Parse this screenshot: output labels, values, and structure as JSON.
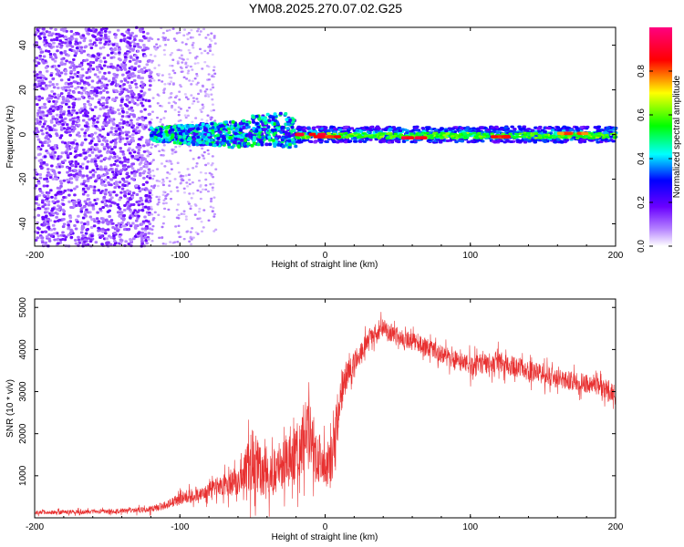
{
  "title": "YM08.2025.270.07.02.G25",
  "chart_data": [
    {
      "type": "heatmap",
      "xlabel": "Height of straight line (km)",
      "ylabel": "Frequency (Hz)",
      "xlim": [
        -200,
        200
      ],
      "ylim": [
        -50,
        48
      ],
      "xticks": [
        -200,
        -100,
        0,
        100,
        200
      ],
      "yticks": [
        -40,
        -20,
        0,
        20,
        40
      ],
      "colorbar": {
        "label": "Normalized spectral amplitude",
        "range": [
          0,
          1
        ],
        "ticks": [
          0.0,
          0.2,
          0.4,
          0.6,
          0.8
        ],
        "colormap": [
          "#ffffff",
          "#8000ff",
          "#0000ff",
          "#00ffff",
          "#00ff00",
          "#ffff00",
          "#ff0000",
          "#ff0080"
        ]
      },
      "regions": [
        {
          "x": [
            -200,
            -120
          ],
          "freq": [
            -50,
            48
          ],
          "amplitude": 0.1,
          "pattern": "noise"
        },
        {
          "x": [
            -120,
            -75
          ],
          "freq": [
            -50,
            48
          ],
          "amplitude": 0.05,
          "pattern": "sparse noise"
        },
        {
          "x": [
            -120,
            -20
          ],
          "freq": [
            -6,
            6
          ],
          "amplitude": 0.4,
          "pattern": "signal band"
        },
        {
          "x": [
            -20,
            200
          ],
          "freq": [
            -4,
            4
          ],
          "amplitude": 0.5,
          "pattern": "signal band"
        }
      ],
      "peaks": [
        {
          "x": -10,
          "freq": 0,
          "amplitude": 0.95
        },
        {
          "x": 0,
          "freq": -1,
          "amplitude": 0.9
        },
        {
          "x": 60,
          "freq": -1.5,
          "amplitude": 0.95
        },
        {
          "x": 120,
          "freq": -1,
          "amplitude": 0.9
        },
        {
          "x": 170,
          "freq": 0.5,
          "amplitude": 0.85
        }
      ]
    },
    {
      "type": "line",
      "xlabel": "Height of straight line (km)",
      "ylabel": "SNR (10 * v/v)",
      "xlim": [
        -200,
        200
      ],
      "ylim": [
        0,
        5200
      ],
      "xticks": [
        -200,
        -100,
        0,
        100,
        200
      ],
      "yticks": [
        1000,
        2000,
        3000,
        4000,
        5000
      ],
      "color": "#e83030",
      "envelope": {
        "x": [
          -200,
          -150,
          -120,
          -110,
          -100,
          -80,
          -60,
          -50,
          -40,
          -30,
          -20,
          -15,
          -10,
          -5,
          0,
          5,
          10,
          15,
          20,
          30,
          40,
          50,
          60,
          80,
          100,
          120,
          140,
          160,
          180,
          200
        ],
        "mean": [
          130,
          150,
          200,
          300,
          450,
          650,
          900,
          1400,
          900,
          1300,
          1500,
          1900,
          2000,
          1500,
          1200,
          1400,
          2900,
          3400,
          3700,
          4300,
          4500,
          4300,
          4200,
          3900,
          3600,
          3700,
          3500,
          3300,
          3200,
          3000
        ],
        "spread": [
          100,
          100,
          150,
          200,
          300,
          400,
          700,
          1500,
          900,
          1300,
          1400,
          1700,
          1700,
          1300,
          1000,
          1000,
          1100,
          700,
          500,
          400,
          450,
          400,
          400,
          450,
          500,
          500,
          500,
          450,
          450,
          450
        ]
      },
      "max_value": 5100
    }
  ]
}
